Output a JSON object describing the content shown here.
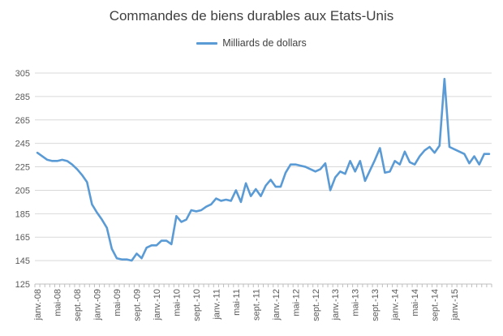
{
  "chart_data": {
    "type": "line",
    "title": "Commandes de biens durables aux Etats-Unis",
    "legend": "Milliards de dollars",
    "legend_position": "top-center",
    "series": [
      {
        "name": "Milliards de dollars",
        "color": "#5b9bd5",
        "values": [
          237,
          234,
          231,
          230,
          230,
          231,
          230,
          227,
          223,
          218,
          212,
          193,
          186,
          180,
          173,
          155,
          147,
          146,
          146,
          145,
          151,
          147,
          156,
          158,
          158,
          162,
          162,
          159,
          183,
          178,
          180,
          188,
          187,
          188,
          191,
          193,
          198,
          196,
          197,
          196,
          205,
          195,
          211,
          200,
          206,
          200,
          209,
          214,
          208,
          208,
          220,
          227,
          227,
          226,
          225,
          223,
          221,
          223,
          228,
          205,
          216,
          221,
          219,
          230,
          221,
          230,
          213,
          222,
          231,
          241,
          220,
          221,
          230,
          227,
          238,
          229,
          227,
          234,
          239,
          242,
          237,
          243,
          300,
          242,
          240,
          238,
          236,
          228,
          234,
          227,
          236,
          236
        ]
      }
    ],
    "x_tick_labels": [
      "janv.-08",
      "mai-08",
      "sept.-08",
      "janv.-09",
      "mai-09",
      "sept.-09",
      "janv.-10",
      "mai-10",
      "sept.-10",
      "janv.-11",
      "mai-11",
      "sept.-11",
      "janv.-12",
      "mai-12",
      "sept.-12",
      "janv.-13",
      "mai-13",
      "sept.-13",
      "janv.-14",
      "mai-14",
      "sept.-14",
      "janv.-15"
    ],
    "x_tick_every_months": 4,
    "y_ticks": [
      125,
      145,
      165,
      185,
      205,
      225,
      245,
      265,
      285,
      305
    ],
    "ylim": [
      125,
      305
    ],
    "grid": "horizontal"
  }
}
